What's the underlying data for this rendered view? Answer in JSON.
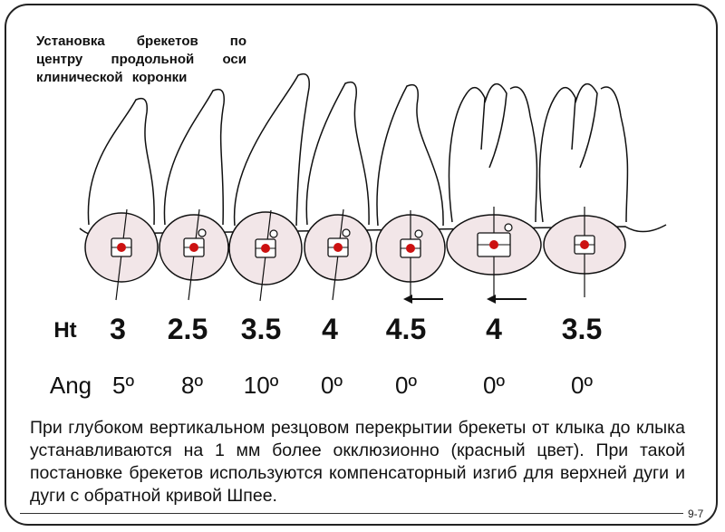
{
  "title": "Установка брекетов по центру продольной оси клинической коронки",
  "ht_label": "Ht",
  "ang_label": "Ang",
  "teeth": [
    {
      "ht": "3",
      "ang": "5º",
      "arrow": false
    },
    {
      "ht": "2.5",
      "ang": "8º",
      "arrow": false
    },
    {
      "ht": "3.5",
      "ang": "10º",
      "arrow": false
    },
    {
      "ht": "4",
      "ang": "0º",
      "arrow": false
    },
    {
      "ht": "4.5",
      "ang": "0º",
      "arrow": true
    },
    {
      "ht": "4",
      "ang": "0º",
      "arrow": true
    },
    {
      "ht": "3.5",
      "ang": "0º",
      "arrow": false
    }
  ],
  "bracket_dot_color": "#cc1111",
  "crown_fill": "#f2e6e8",
  "description": "При глубоком вертикальном резцовом перекрытии брекеты от клыка до клыка устанавливаются на 1 мм более окклюзионно (красный цвет). При такой постановке брекетов используются компенсаторный изгиб для верхней дуги и дуги с обратной кривой Шпее.",
  "page_number": "9-7"
}
